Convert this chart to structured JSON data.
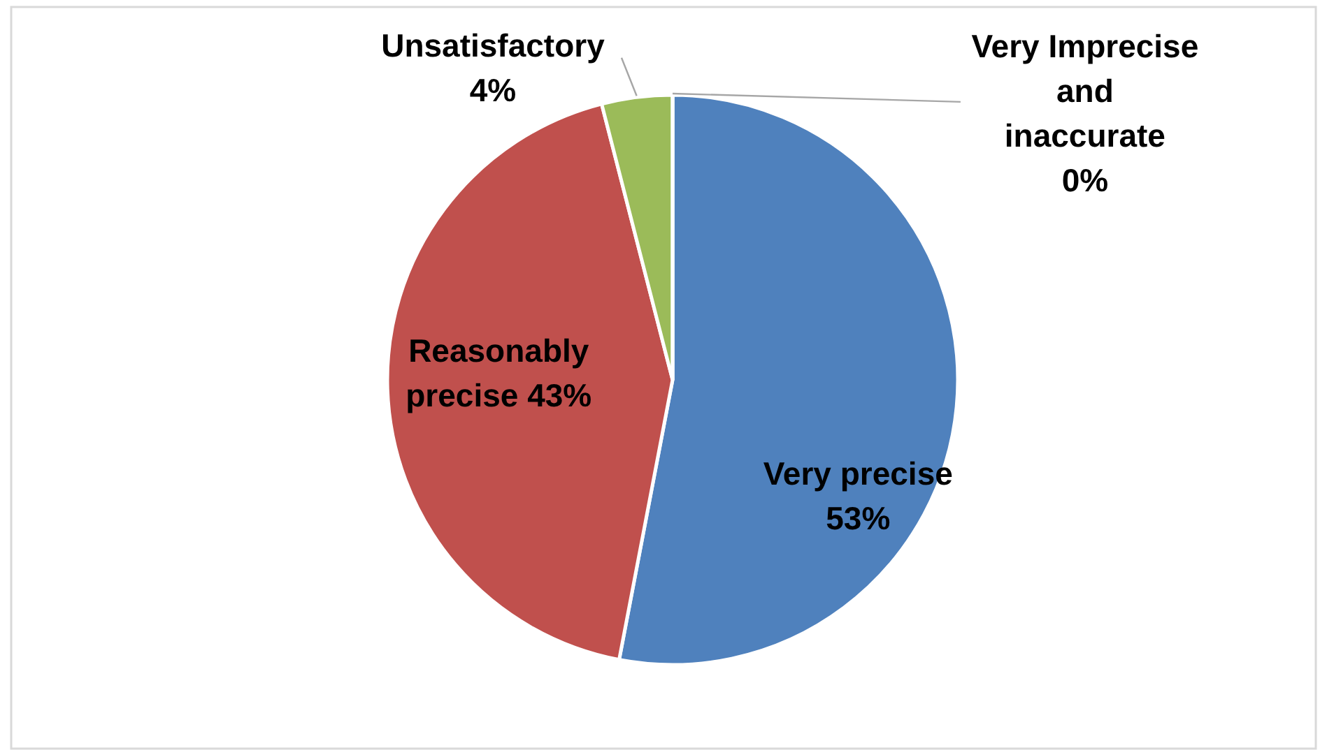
{
  "chart_data": {
    "type": "pie",
    "categories": [
      "Very precise",
      "Reasonably precise",
      "Unsatisfactory",
      "Very Imprecise and inaccurate"
    ],
    "values": [
      53,
      43,
      4,
      0
    ],
    "colors": [
      "#4f81bd",
      "#c0504d",
      "#9bbb59",
      "#8064a2"
    ],
    "value_labels": [
      "53%",
      "43%",
      "4%",
      "0%"
    ],
    "legend": false
  }
}
